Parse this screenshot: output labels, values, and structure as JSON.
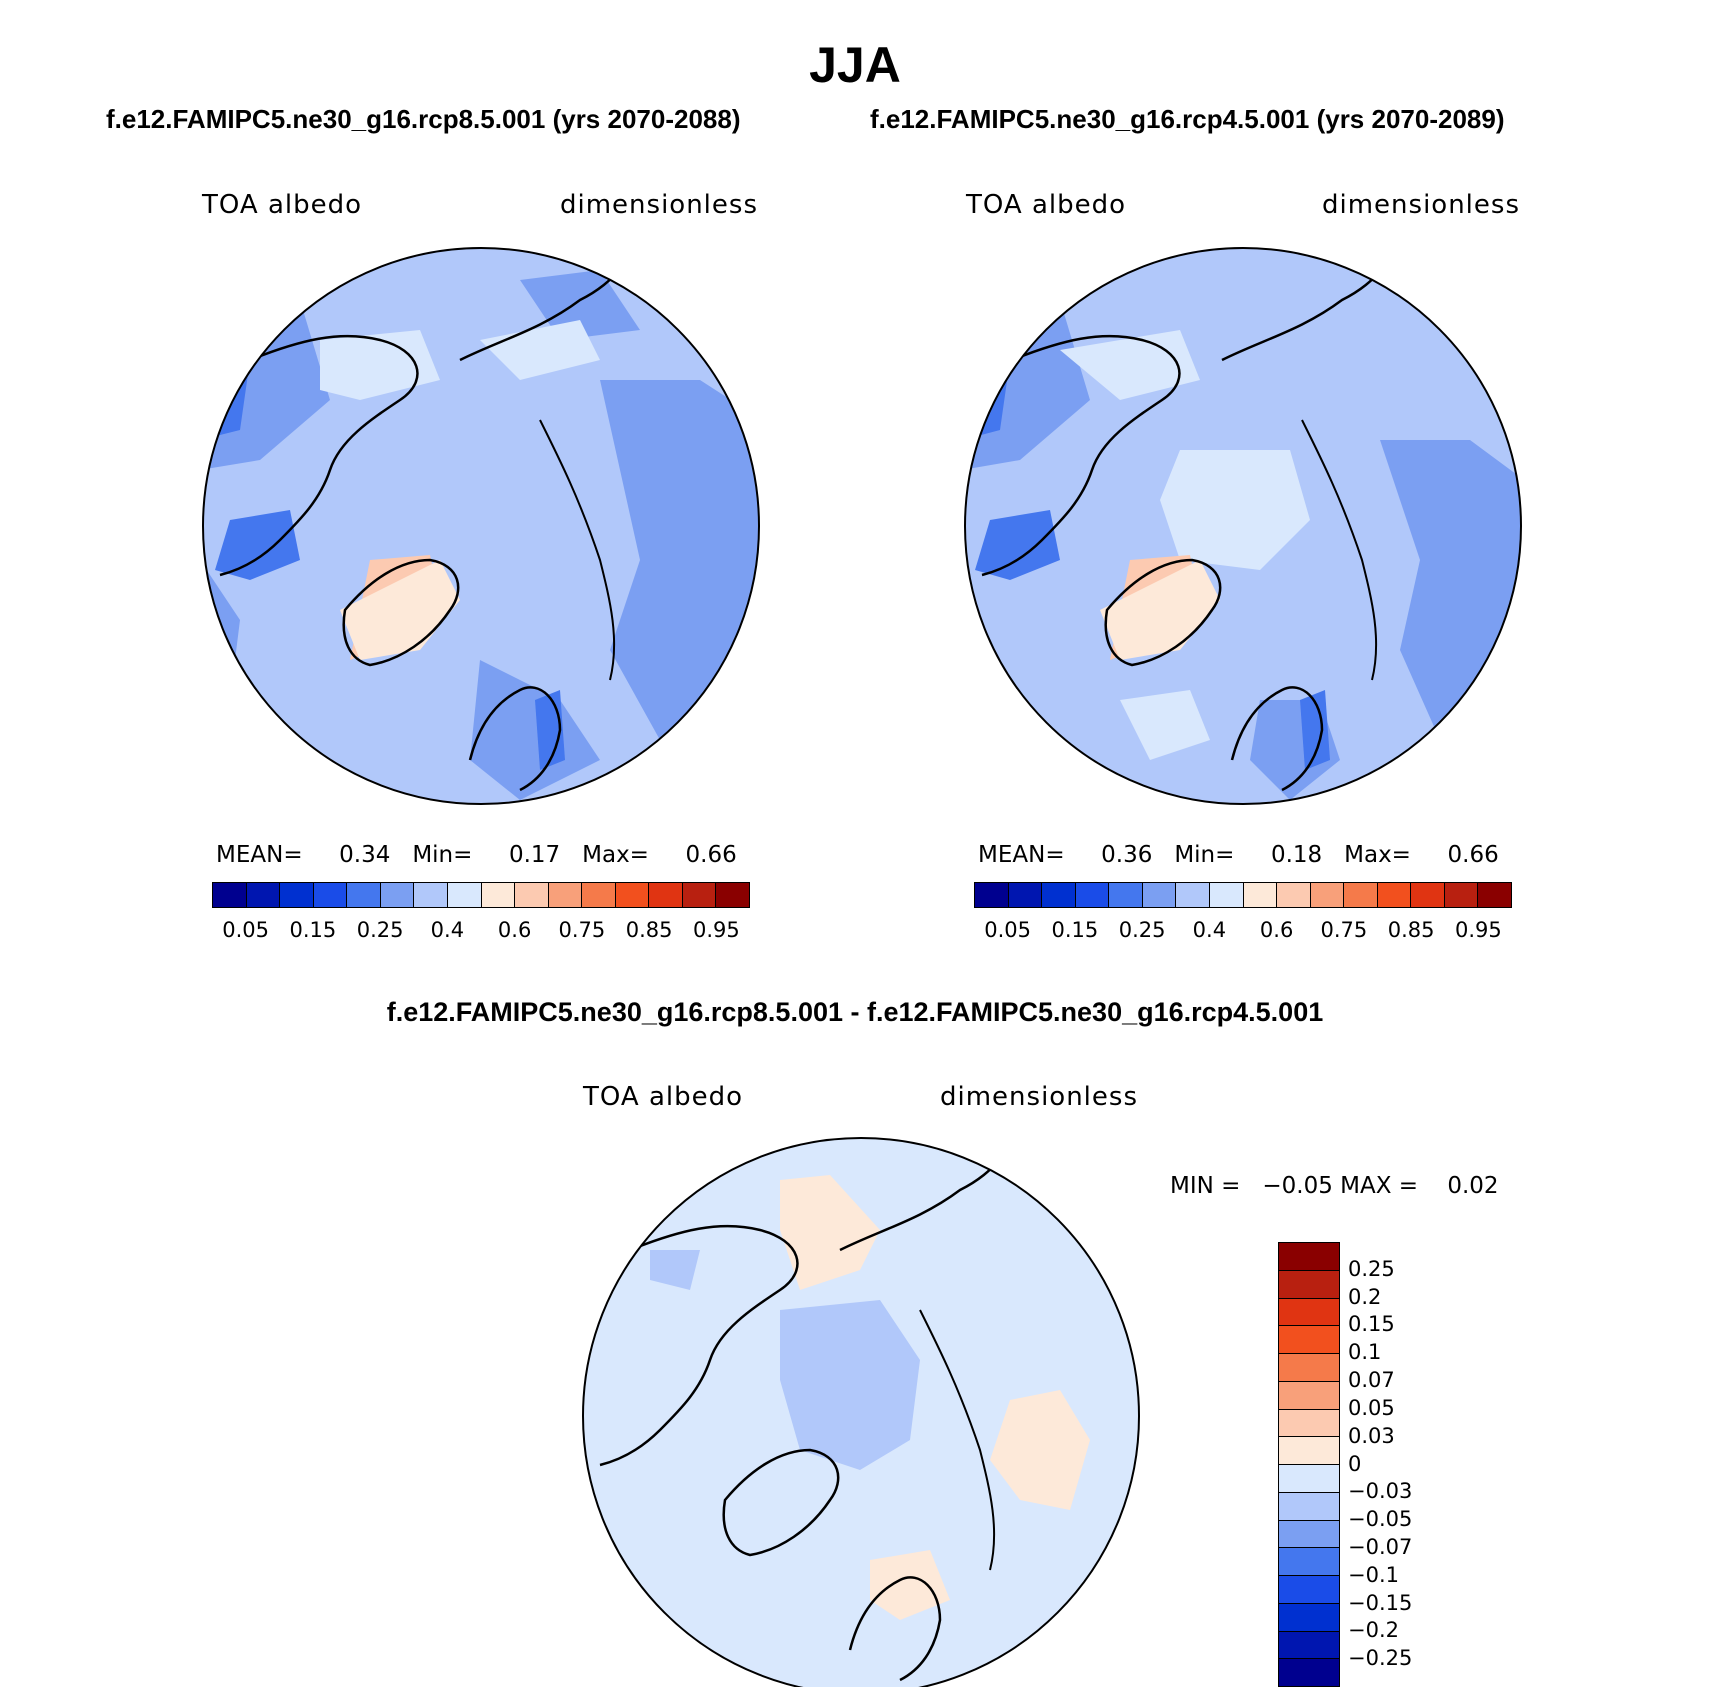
{
  "title": "JJA",
  "panels": [
    {
      "case": "f.e12.FAMIPC5.ne30_g16.rcp8.5.001 (yrs 2070-2088)",
      "variable": "TOA albedo",
      "units": "dimensionless",
      "stats": {
        "mean_label": "MEAN=",
        "mean": "0.34",
        "min_label": "Min=",
        "min": "0.17",
        "max_label": "Max=",
        "max": "0.66"
      }
    },
    {
      "case": "f.e12.FAMIPC5.ne30_g16.rcp4.5.001 (yrs 2070-2089)",
      "variable": "TOA albedo",
      "units": "dimensionless",
      "stats": {
        "mean_label": "MEAN=",
        "mean": "0.36",
        "min_label": "Min=",
        "min": "0.18",
        "max_label": "Max=",
        "max": "0.66"
      }
    }
  ],
  "diff": {
    "title": "f.e12.FAMIPC5.ne30_g16.rcp8.5.001 - f.e12.FAMIPC5.ne30_g16.rcp4.5.001",
    "variable": "TOA albedo",
    "units": "dimensionless",
    "stats": {
      "min_label": "MIN =",
      "min": "−0.05",
      "max_label": "MAX =",
      "max": "0.02"
    }
  },
  "colorbar_abs": {
    "colors": [
      "#00008f",
      "#0016b0",
      "#0030d0",
      "#1a4ce8",
      "#4477ee",
      "#7b9ff2",
      "#b1c8fa",
      "#d9e8fd",
      "#fde9d9",
      "#fccab1",
      "#f8a07a",
      "#f57a4a",
      "#f2501e",
      "#e03412",
      "#b82010",
      "#8a0000"
    ],
    "ticks": [
      "0.05",
      "0.15",
      "0.25",
      "0.4",
      "0.6",
      "0.75",
      "0.85",
      "0.95"
    ]
  },
  "colorbar_diff": {
    "colors_top_to_bottom": [
      "#8a0000",
      "#b82010",
      "#e03412",
      "#f2501e",
      "#f57a4a",
      "#f8a07a",
      "#fccab1",
      "#fde9d9",
      "#d9e8fd",
      "#b1c8fa",
      "#7b9ff2",
      "#4477ee",
      "#1a4ce8",
      "#0030d0",
      "#0016b0",
      "#00008f"
    ],
    "ticks_top_to_bottom": [
      "0.25",
      "0.2",
      "0.15",
      "0.1",
      "0.07",
      "0.05",
      "0.03",
      "0",
      "−0.03",
      "−0.05",
      "−0.07",
      "−0.1",
      "−0.15",
      "−0.2",
      "−0.25"
    ]
  }
}
